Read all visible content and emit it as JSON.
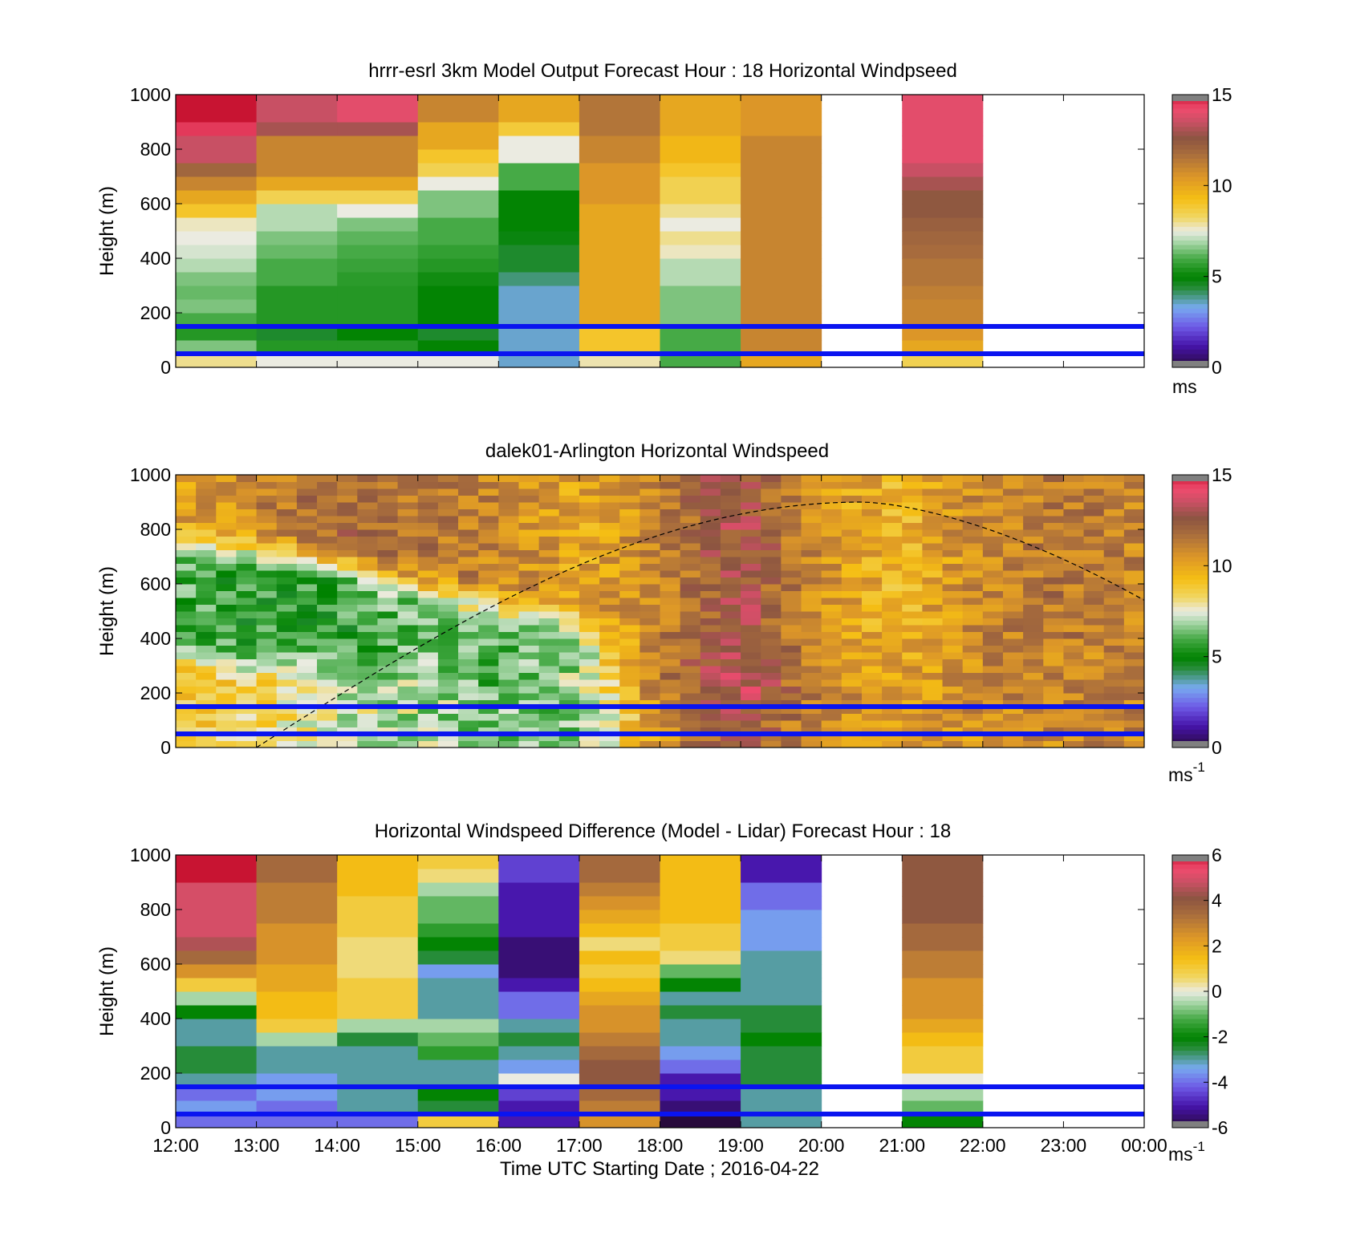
{
  "chart_data": [
    {
      "type": "heatmap",
      "title": "hrrr-esrl 3km Model Output   Forecast Hour : 18 Horizontal Windpseed",
      "ylabel": "Height (m)",
      "xlabel": "",
      "ylim": [
        0,
        1000
      ],
      "yticks": [
        "0",
        "200",
        "400",
        "600",
        "800",
        "1000"
      ],
      "x_hours": [
        "12:00",
        "13:00",
        "14:00",
        "15:00",
        "16:00",
        "17:00",
        "18:00",
        "19:00",
        "20:00",
        "21:00",
        "22:00",
        "23:00",
        "00:00"
      ],
      "colorbar": {
        "ticks": [
          "0",
          "5",
          "10",
          "15"
        ],
        "range": [
          0,
          15
        ],
        "unit": "ms",
        "unit_sup": ""
      },
      "reference_lines_m": [
        150,
        50
      ],
      "bin_height_m": 50,
      "columns": [
        {
          "hour": 0,
          "values": [
            8,
            6.5,
            5.5,
            6,
            6.5,
            6.3,
            6.5,
            7,
            7.3,
            7.5,
            7.7,
            9,
            10,
            11,
            12,
            13.5,
            13.5,
            14.5,
            15,
            15
          ]
        },
        {
          "hour": 1,
          "values": [
            7.5,
            5.5,
            4.5,
            5.5,
            5.5,
            5.5,
            6,
            6,
            6.3,
            6.5,
            7,
            7,
            8.5,
            10,
            11,
            11,
            11,
            13,
            13.5,
            13.5
          ]
        },
        {
          "hour": 2,
          "values": [
            7.5,
            5.5,
            5,
            5.5,
            5.5,
            5.5,
            5.6,
            5.8,
            6,
            6.2,
            6.5,
            7.5,
            8.5,
            10,
            11,
            11,
            11,
            13,
            14,
            14
          ]
        },
        {
          "hour": 3,
          "values": [
            7.5,
            5,
            4.5,
            5,
            5,
            5,
            5.2,
            5.5,
            5.7,
            6,
            6,
            6.5,
            6.5,
            7.5,
            8.5,
            9,
            10,
            10,
            11,
            11
          ]
        },
        {
          "hour": 4,
          "values": [
            3.5,
            3.5,
            3.5,
            3.5,
            3.5,
            3.5,
            4,
            4.5,
            4.5,
            4.8,
            5,
            5,
            5,
            6,
            6,
            7.5,
            7.5,
            8.8,
            10,
            10
          ]
        },
        {
          "hour": 5,
          "values": [
            7.8,
            9,
            9,
            10,
            10,
            10,
            10,
            10,
            10,
            10,
            10,
            10,
            10.5,
            10.5,
            10.5,
            11,
            11,
            11.5,
            11.5,
            11.5
          ]
        },
        {
          "hour": 6,
          "values": [
            6,
            6,
            6,
            6.5,
            6.5,
            6.5,
            7,
            7,
            7.7,
            8,
            7.5,
            8,
            8.5,
            8.5,
            9,
            9.5,
            9.5,
            10,
            10,
            10
          ]
        },
        {
          "hour": 7,
          "values": [
            10,
            11,
            11,
            11,
            11,
            11,
            11,
            11,
            11,
            11,
            11,
            11,
            11,
            11,
            11,
            11,
            11,
            10.5,
            10.5,
            10.5
          ]
        },
        {
          "hour": 9,
          "values": [
            8.5,
            10,
            10.5,
            11,
            11,
            11.2,
            11.5,
            11.5,
            11.8,
            12,
            12.2,
            12.5,
            12.5,
            13,
            13.5,
            14,
            14,
            14,
            14,
            14
          ]
        }
      ]
    },
    {
      "type": "heatmap",
      "title": "dalek01-Arlington  Horizontal Windspeed",
      "ylabel": "Height (m)",
      "xlabel": "",
      "ylim": [
        0,
        1000
      ],
      "yticks": [
        "0",
        "200",
        "400",
        "600",
        "800",
        "1000"
      ],
      "x_hours": [
        "12:00",
        "13:00",
        "14:00",
        "15:00",
        "16:00",
        "17:00",
        "18:00",
        "19:00",
        "20:00",
        "21:00",
        "22:00",
        "23:00",
        "00:00"
      ],
      "colorbar": {
        "ticks": [
          "0",
          "5",
          "10",
          "15"
        ],
        "range": [
          0,
          15
        ],
        "unit": "ms",
        "unit_sup": "-1"
      },
      "reference_lines_m": [
        150,
        50
      ],
      "profile_step_hours": 0.25,
      "regime_breaks": [
        {
          "hour": 0.0,
          "low_m": 300,
          "low": 9,
          "mid_m": 680,
          "mid": 6,
          "top": 10
        },
        {
          "hour": 1.0,
          "low_m": 250,
          "low": 8.5,
          "mid_m": 650,
          "mid": 5.5,
          "top": 11
        },
        {
          "hour": 2.0,
          "low_m": 250,
          "low": 7.5,
          "mid_m": 600,
          "mid": 5.5,
          "top": 12
        },
        {
          "hour": 3.0,
          "low_m": 200,
          "low": 7.0,
          "mid_m": 520,
          "mid": 6.5,
          "top": 11.5
        },
        {
          "hour": 4.0,
          "low_m": 150,
          "low": 6.5,
          "mid_m": 450,
          "mid": 6.0,
          "top": 11
        },
        {
          "hour": 5.0,
          "low_m": 150,
          "low": 6.5,
          "mid_m": 400,
          "mid": 7.0,
          "top": 10
        },
        {
          "hour": 6.0,
          "low_m": 100,
          "low": 10.5,
          "mid_m": 300,
          "mid": 11.5,
          "top": 11
        },
        {
          "hour": 7.0,
          "low_m": 100,
          "low": 13,
          "mid_m": 300,
          "mid": 13.5,
          "top": 13
        },
        {
          "hour": 8.0,
          "low_m": 100,
          "low": 10.5,
          "mid_m": 300,
          "mid": 11,
          "top": 10.5
        },
        {
          "hour": 9.0,
          "low_m": 100,
          "low": 10.5,
          "mid_m": 300,
          "mid": 10,
          "top": 9.5
        },
        {
          "hour": 10.0,
          "low_m": 100,
          "low": 10.5,
          "mid_m": 300,
          "mid": 11,
          "top": 11
        },
        {
          "hour": 11.0,
          "low_m": 100,
          "low": 11,
          "mid_m": 300,
          "mid": 11,
          "top": 11.5
        },
        {
          "hour": 12.0,
          "low_m": 100,
          "low": 11,
          "mid_m": 300,
          "mid": 11,
          "top": 11
        }
      ],
      "sun_curve": {
        "peak_hour": 8.5,
        "peak_m": 900,
        "start_hour": 1.0,
        "end_hour": 12.0,
        "end_m": 540
      }
    },
    {
      "type": "heatmap",
      "title": "Horizontal Windspeed Difference (Model - Lidar) Forecast Hour : 18",
      "ylabel": "Height (m)",
      "xlabel": "Time UTC  Starting Date ; 2016-04-22",
      "ylim": [
        0,
        1000
      ],
      "yticks": [
        "0",
        "200",
        "400",
        "600",
        "800",
        "1000"
      ],
      "x_hours": [
        "12:00",
        "13:00",
        "14:00",
        "15:00",
        "16:00",
        "17:00",
        "18:00",
        "19:00",
        "20:00",
        "21:00",
        "22:00",
        "23:00",
        "00:00"
      ],
      "colorbar": {
        "ticks": [
          "-6",
          "-4",
          "-2",
          "0",
          "2",
          "4",
          "6"
        ],
        "range": [
          -6,
          6
        ],
        "unit": "ms",
        "unit_sup": "-1"
      },
      "reference_lines_m": [
        150,
        50
      ],
      "bin_height_m": 50,
      "columns": [
        {
          "hour": 0,
          "values": [
            -4,
            -3.5,
            -4,
            -3,
            -2.5,
            -2.5,
            -3,
            -3,
            -2,
            -0.5,
            1,
            2.5,
            3.5,
            4.5,
            5,
            5,
            5,
            5,
            6,
            6
          ]
        },
        {
          "hour": 1,
          "values": [
            -4,
            -4,
            -3.5,
            -3.5,
            -3,
            -3,
            -0.5,
            1,
            1.5,
            1.5,
            2,
            2,
            2.5,
            2.5,
            2.5,
            3,
            3,
            3,
            3.5,
            3.5
          ]
        },
        {
          "hour": 2,
          "values": [
            -4,
            -3,
            -3,
            -3,
            -3,
            -3,
            -2.5,
            -0.5,
            1,
            1,
            1,
            0.5,
            0.5,
            0.5,
            1,
            1,
            1,
            1.5,
            1.5,
            1.5
          ]
        },
        {
          "hour": 3,
          "values": [
            1,
            -2.5,
            -2,
            -3,
            -3,
            -1.5,
            -1,
            -0.5,
            -3,
            -3,
            -3,
            -3.5,
            -2.5,
            -2,
            -1.5,
            -1,
            -1,
            -0.5,
            0.5,
            1
          ]
        },
        {
          "hour": 4,
          "values": [
            -5,
            -5,
            -4.5,
            0,
            -3.5,
            -3,
            -2.5,
            -3,
            -4,
            -4,
            -5,
            -5.5,
            -5.5,
            -5.5,
            -5,
            -5,
            -5,
            -5,
            -4.5,
            -4.5
          ]
        },
        {
          "hour": 5,
          "values": [
            2.5,
            3,
            3.5,
            4,
            4,
            3.5,
            3,
            2.5,
            2.5,
            2,
            1.5,
            1,
            1.5,
            0.5,
            1.5,
            2,
            2.5,
            3,
            3.5,
            3.5
          ]
        },
        {
          "hour": 6,
          "values": [
            -6,
            -5.5,
            -5,
            -5,
            -4,
            -3.5,
            -3,
            -3,
            -2.5,
            -3,
            -2,
            -1,
            0.5,
            1,
            1,
            1.5,
            1.5,
            1.5,
            1.5,
            1.5
          ]
        },
        {
          "hour": 7,
          "values": [
            -3,
            -3,
            -3,
            -2.5,
            -2.5,
            -2.5,
            -2,
            -2.5,
            -2.5,
            -3,
            -3,
            -3,
            -3,
            -3.5,
            -3.5,
            -3.5,
            -4,
            -4,
            -5,
            -5
          ]
        },
        {
          "hour": 9,
          "values": [
            -2,
            -1,
            -0.5,
            0,
            1,
            1,
            1.5,
            2,
            2.5,
            2.5,
            2.5,
            3,
            3,
            3.5,
            3.5,
            4,
            4,
            4,
            4,
            4
          ]
        }
      ]
    }
  ]
}
